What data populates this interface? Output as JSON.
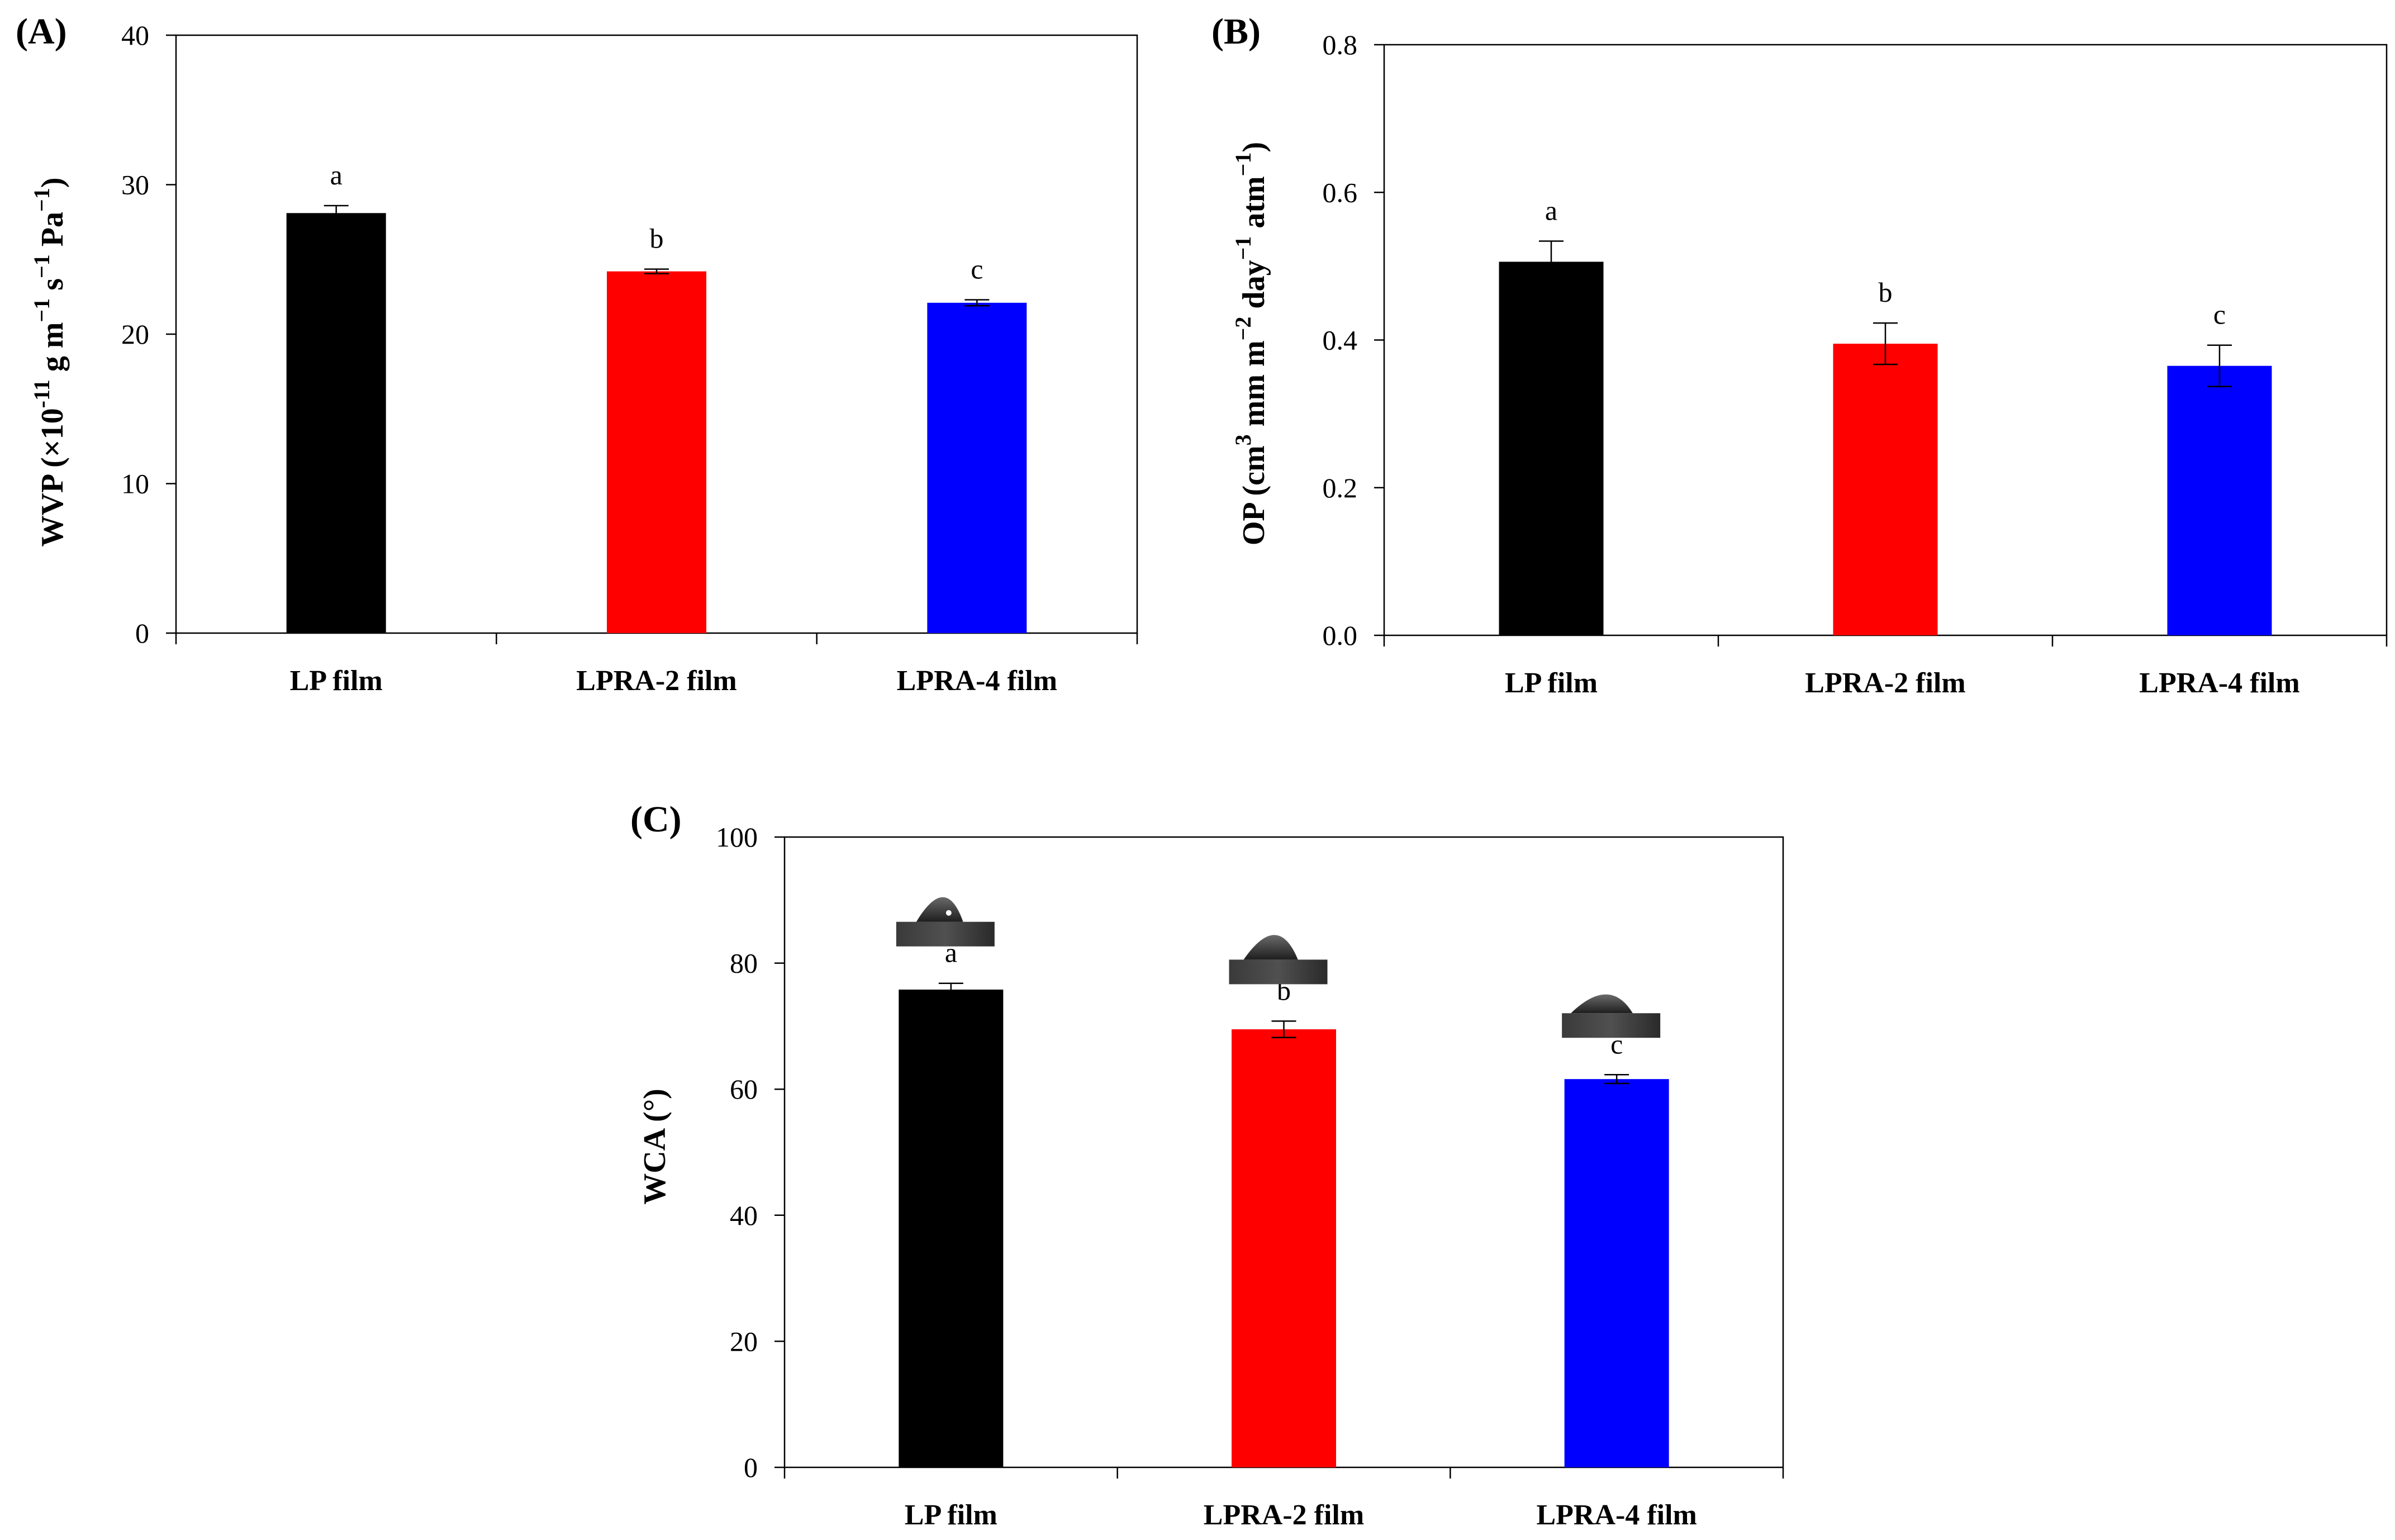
{
  "chart_data": [
    {
      "panel": "(A)",
      "type": "bar",
      "categories": [
        "LP film",
        "LPRA-2 film",
        "LPRA-4 film"
      ],
      "values": [
        28.1,
        24.2,
        22.1
      ],
      "errors": [
        0.5,
        0.15,
        0.2
      ],
      "significance": [
        "a",
        "b",
        "c"
      ],
      "colors": [
        "#000000",
        "#ff0000",
        "#0000ff"
      ],
      "ylabel": "WVP (×10⁻¹¹ g m⁻¹ s⁻¹ Pa⁻¹)",
      "ylabel_main": "WVP (×10",
      "ylabel_exp": "-11",
      "ylabel_unit": " g m",
      "ylabel_exp2": "−1",
      "ylabel_unit2": " s",
      "ylabel_exp3": "−1",
      "ylabel_unit3": " Pa",
      "ylabel_exp4": "−1",
      "ylabel_close": ")",
      "xlabel": "",
      "ylim": [
        0,
        40
      ],
      "yticks": [
        0,
        10,
        20,
        30,
        40
      ],
      "ytick_labels": [
        "0",
        "10",
        "20",
        "30",
        "40"
      ],
      "grid": false
    },
    {
      "panel": "(B)",
      "type": "bar",
      "categories": [
        "LP film",
        "LPRA-2 film",
        "LPRA-4 film"
      ],
      "values": [
        0.506,
        0.395,
        0.365
      ],
      "errors": [
        0.028,
        0.028,
        0.028
      ],
      "significance": [
        "a",
        "b",
        "c"
      ],
      "colors": [
        "#000000",
        "#ff0000",
        "#0000ff"
      ],
      "ylabel": "OP (cm³ mm m⁻² day⁻¹ atm⁻¹)",
      "ylabel_main": "OP (cm",
      "ylabel_exp": "3",
      "ylabel_unit": " mm m",
      "ylabel_exp2": "−2",
      "ylabel_unit2": " day",
      "ylabel_exp3": "−1",
      "ylabel_unit3": " atm",
      "ylabel_exp4": "−1",
      "ylabel_close": ")",
      "xlabel": "",
      "ylim": [
        0,
        0.8
      ],
      "yticks": [
        0,
        0.2,
        0.4,
        0.6,
        0.8
      ],
      "ytick_labels": [
        "0.0",
        "0.2",
        "0.4",
        "0.6",
        "0.8"
      ],
      "grid": false
    },
    {
      "panel": "(C)",
      "type": "bar",
      "categories": [
        "LP film",
        "LPRA-2 film",
        "LPRA-4 film"
      ],
      "values": [
        75.8,
        69.5,
        61.6
      ],
      "errors": [
        1.0,
        1.3,
        0.7
      ],
      "significance": [
        "a",
        "b",
        "c"
      ],
      "colors": [
        "#000000",
        "#ff0000",
        "#0000ff"
      ],
      "ylabel": "WCA (°)",
      "xlabel": "",
      "ylim": [
        0,
        100
      ],
      "yticks": [
        0,
        20,
        40,
        60,
        80,
        100
      ],
      "ytick_labels": [
        "0",
        "20",
        "40",
        "60",
        "80",
        "100"
      ],
      "grid": false,
      "inset_images": "water-droplet-photos"
    }
  ]
}
